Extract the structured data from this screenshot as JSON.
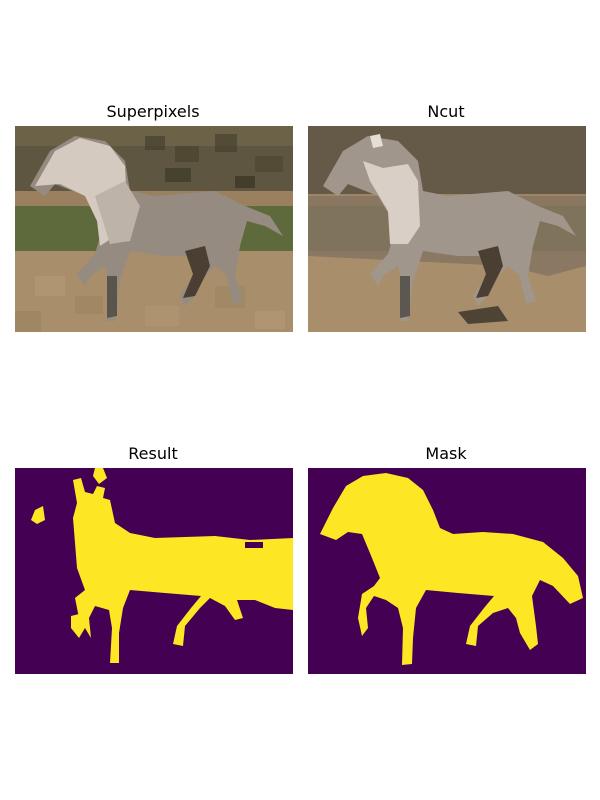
{
  "figure": {
    "panels": [
      {
        "title": "Superpixels",
        "content": "superpixel-image"
      },
      {
        "title": "Ncut",
        "content": "ncut-image"
      },
      {
        "title": "Result",
        "content": "result-mask"
      },
      {
        "title": "Mask",
        "content": "ground-truth-mask"
      }
    ],
    "colors": {
      "mask_background": "#440154",
      "mask_foreground": "#fde725",
      "sky_dark": "#5a5240",
      "grass": "#5f6a3c",
      "sand": "#a88e6a",
      "horse_light": "#d9cfc6",
      "horse_grey": "#958b80",
      "legs_dark": "#4a3f32"
    }
  }
}
